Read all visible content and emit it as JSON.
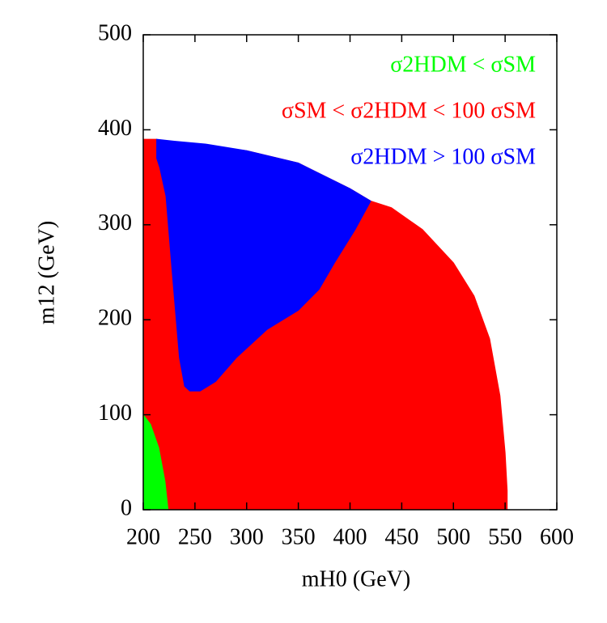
{
  "chart_data": {
    "type": "region",
    "x_label": "mH0 (GeV)",
    "y_label": "m12 (GeV)",
    "xlim": [
      200,
      600
    ],
    "xticks": [
      200,
      250,
      300,
      350,
      400,
      450,
      500,
      550,
      600
    ],
    "ylim": [
      0,
      500
    ],
    "yticks": [
      0,
      100,
      200,
      300,
      400,
      500
    ],
    "series": [
      {
        "name": "σSM < σ2HDM < 100 σSM",
        "color": "#ff0000",
        "x": [
          200,
          200,
          213,
          213,
          260,
          300,
          350,
          400,
          420,
          440,
          470,
          500,
          520,
          535,
          545,
          550,
          552,
          552
        ],
        "y": [
          0,
          390,
          390,
          385,
          383,
          378,
          365,
          338,
          325,
          318,
          295,
          260,
          225,
          180,
          120,
          60,
          20,
          0
        ]
      },
      {
        "name": "σ2HDM > 100 σSM",
        "color": "#0000ff",
        "x": [
          213,
          230,
          260,
          300,
          350,
          400,
          420,
          405,
          385,
          370,
          350,
          320,
          290,
          270,
          255,
          245,
          240,
          235,
          228,
          222,
          216,
          213
        ],
        "y": [
          390,
          388,
          385,
          378,
          365,
          338,
          325,
          295,
          260,
          232,
          210,
          190,
          160,
          135,
          125,
          125,
          130,
          160,
          250,
          330,
          360,
          370
        ]
      },
      {
        "name": "σ2HDM < σSM",
        "color": "#00ff00",
        "x": [
          200,
          200,
          207,
          215,
          221,
          224
        ],
        "y": [
          0,
          100,
          90,
          65,
          30,
          0
        ]
      }
    ]
  }
}
